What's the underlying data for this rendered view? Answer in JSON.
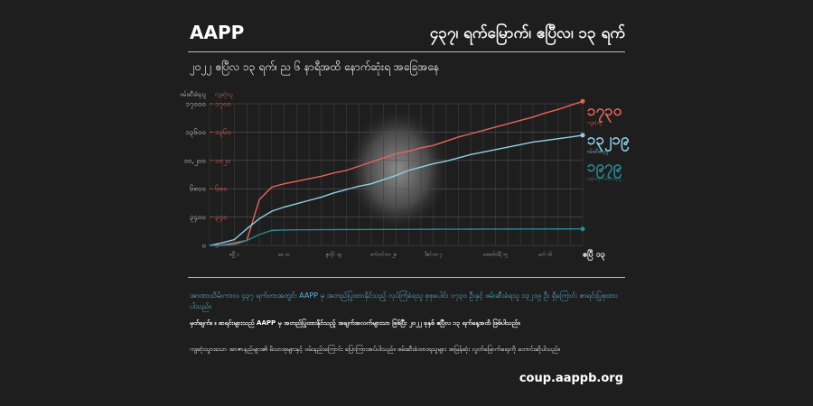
{
  "header": {
    "brand": "AAPP",
    "headline": "၄၃၇၊ ရက်မြောက်၊ ဧပြီလ၊ ၁၃ ရက်",
    "subtitle": "၂၀၂၂ ဧပြီလ ၁၃ ရက်၊ ည ၆ နာရီအထိ နောက်ဆုံးရ အခြေအနေ"
  },
  "chart_data": {
    "type": "line",
    "ylabel": "ဖမ်းဆီးခံရသူ",
    "y2label": "ကျဆုံးသူ",
    "categories": [
      null,
      null,
      "ဧပြီ ၁",
      null,
      null,
      null,
      "မေ ၁၀",
      null,
      null,
      null,
      "ဇူလိုင် ၁၉",
      null,
      null,
      null,
      "စက်တင်ဘာ ၂၈",
      null,
      null,
      null,
      "ဒီဇင်ဘာ ၇",
      null,
      null,
      null,
      null,
      "ဖေဖော်ဝါရီ ၁၅",
      null,
      null,
      null,
      "မတ် ၁၆",
      null,
      null,
      "ဧပြီ ၁၃"
    ],
    "series": [
      {
        "name": "ကျဆုံးသူ",
        "color": "#e8645a",
        "axis": "y2",
        "end_label": "၁၇၃၀",
        "values": [
          0,
          5,
          30,
          60,
          550,
          700,
          740,
          770,
          800,
          830,
          870,
          900,
          950,
          1000,
          1050,
          1100,
          1130,
          1170,
          1200,
          1250,
          1300,
          1340,
          1380,
          1420,
          1460,
          1500,
          1540,
          1590,
          1630,
          1680,
          1730
        ]
      },
      {
        "name": "ဖမ်းဆီးခံရသူ",
        "color": "#8fd0ea",
        "end_label": "၁၃၂၁၉",
        "values": [
          0,
          300,
          700,
          2000,
          3200,
          4100,
          4600,
          5000,
          5400,
          5800,
          6300,
          6700,
          7100,
          7400,
          7900,
          8400,
          9000,
          9400,
          9800,
          10100,
          10500,
          10900,
          11200,
          11500,
          11800,
          12100,
          12400,
          12600,
          12800,
          13000,
          13219
        ]
      },
      {
        "name": "ဝရမ်းထုတ်ခံထားရသူ",
        "color": "#2b8a96",
        "end_label": "၁၉၇၉",
        "values": [
          0,
          0,
          100,
          600,
          1300,
          1800,
          1850,
          1870,
          1880,
          1890,
          1895,
          1900,
          1905,
          1910,
          1915,
          1920,
          1925,
          1930,
          1935,
          1940,
          1945,
          1950,
          1955,
          1960,
          1963,
          1966,
          1969,
          1972,
          1975,
          1977,
          1979
        ]
      }
    ],
    "ylim": [
      0,
      17000
    ],
    "yticks": [
      {
        "value": 0,
        "label": "၀"
      },
      {
        "value": 3400,
        "label": "၃၄၀၀"
      },
      {
        "value": 6800,
        "label": "၆၈၀၀"
      },
      {
        "value": 10200,
        "label": "၁၀,၂၀၀"
      },
      {
        "value": 13600,
        "label": "၁၃၆၀၀"
      },
      {
        "value": 17000,
        "label": "၁၇၀၀၀"
      }
    ],
    "y2lim": [
      0,
      1700
    ],
    "y2ticks": [
      {
        "value": 0,
        "label": "၀"
      },
      {
        "value": 340,
        "label": "၃၄၀"
      },
      {
        "value": 680,
        "label": "၆၈၀"
      },
      {
        "value": 1020,
        "label": "၁၀၂၀"
      },
      {
        "value": 1360,
        "label": "၁၃၆၀"
      },
      {
        "value": 1700,
        "label": "၁၇၀၀"
      }
    ],
    "grid": true
  },
  "notes": [
    "အာဏာသိမ်းကာလ ၄၃၇ ရက်တာအတွင်း AAPP မှ အတည်ပြုထားနိုင်သည့် လုပ်ကြံခံရသူ စုစုပေါင်း ၁၇၃၀ ဦးနှင့် ဖမ်းဆီးခံရသူ ၁၃၂၁၉ ဦး ရှိကြောင်း စာရင်းပြုစုထားပါသည်။",
    "မှတ်ချက်။ ။ စာရင်းများသည် AAPP မှ အတည်ပြုထားနိုင်သည့် အချက်အလက်များသာ ဖြစ်ပြီး ၂၀၂၂ ခုနှစ် ဧပြီလ ၁၃ ရက်နေ့အထိ ဖြစ်ပါသည်။",
    "ကျဆုံးသွားသော အာဇာနည်များ၏ မိသားစုများနှင့် ဝမ်းနည်းကြောင်း ပြောကြားအပ်ပါသည်။ ဖမ်းဆီးခံထားရသူများ အမြန်ဆုံး လွတ်မြောက်ရေးကို တောင်းဆိုပါသည်။"
  ],
  "footer": {
    "url": "coup.aappb.org"
  }
}
